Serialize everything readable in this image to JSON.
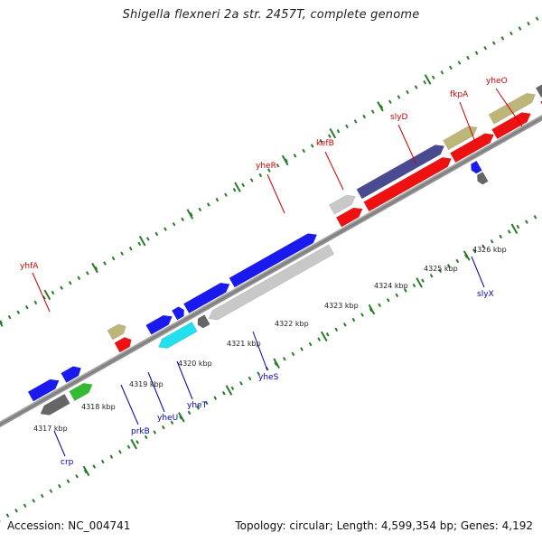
{
  "title": "Shigella flexneri 2a str. 2457T, complete genome",
  "footer": {
    "accession": "Accession: NC_004741",
    "summary": "Topology: circular; Length: 4,599,354 bp; Genes: 4,192"
  },
  "ticks": [
    "4317 kbp",
    "4318 kbp",
    "4319 kbp",
    "4320 kbp",
    "4321 kbp",
    "4322 kbp",
    "4323 kbp",
    "4324 kbp",
    "4325 kbp",
    "4326 kbp"
  ],
  "gene_labels_top": [
    "yhfA",
    "yheR",
    "kefB",
    "slyD",
    "fkpA",
    "yheO"
  ],
  "gene_labels_bottom": [
    "crp",
    "prkB",
    "yheU",
    "yheT",
    "yheS",
    "slyX"
  ],
  "colors": {
    "backbone": "#8a8a8a",
    "tick": "#2a7a2a",
    "top_label": "#cc0000",
    "bottom_label": "#0000aa",
    "blue": "#1a1aee",
    "red": "#ee1111",
    "olive": "#bdb679",
    "navy": "#4a4a90",
    "lightgray": "#c8c8c8",
    "darkgray": "#666666",
    "green": "#33bb33",
    "cyan": "#22e0ee"
  }
}
